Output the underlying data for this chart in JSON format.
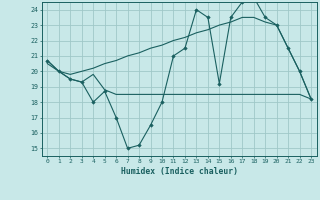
{
  "background_color": "#c8e8e8",
  "grid_color": "#a0c8c8",
  "line_color": "#1a6060",
  "xlabel": "Humidex (Indice chaleur)",
  "xlim": [
    -0.5,
    23.5
  ],
  "ylim": [
    14.5,
    24.5
  ],
  "yticks": [
    15,
    16,
    17,
    18,
    19,
    20,
    21,
    22,
    23,
    24
  ],
  "xticks": [
    0,
    1,
    2,
    3,
    4,
    5,
    6,
    7,
    8,
    9,
    10,
    11,
    12,
    13,
    14,
    15,
    16,
    17,
    18,
    19,
    20,
    21,
    22,
    23
  ],
  "line1_x": [
    0,
    1,
    2,
    3,
    4,
    5,
    6,
    7,
    8,
    9,
    10,
    11,
    12,
    13,
    14,
    15,
    16,
    17,
    18,
    19,
    20,
    21,
    22,
    23
  ],
  "line1_y": [
    20.7,
    20.0,
    19.5,
    19.3,
    18.0,
    18.7,
    17.0,
    15.0,
    15.2,
    16.5,
    18.0,
    21.0,
    21.5,
    24.0,
    23.5,
    19.2,
    23.5,
    24.5,
    24.8,
    23.5,
    23.0,
    21.5,
    20.0,
    18.2
  ],
  "line2_x": [
    0,
    2,
    3,
    4,
    5,
    6,
    7,
    8,
    9,
    10,
    11,
    12,
    13,
    14,
    15,
    16,
    17,
    18,
    19,
    20,
    21,
    22,
    23
  ],
  "line2_y": [
    20.5,
    19.5,
    19.3,
    19.8,
    18.8,
    18.5,
    18.5,
    18.5,
    18.5,
    18.5,
    18.5,
    18.5,
    18.5,
    18.5,
    18.5,
    18.5,
    18.5,
    18.5,
    18.5,
    18.5,
    18.5,
    18.5,
    18.2
  ],
  "line3_x": [
    0,
    1,
    2,
    3,
    4,
    5,
    6,
    7,
    8,
    9,
    10,
    11,
    12,
    13,
    14,
    15,
    16,
    17,
    18,
    19,
    20,
    21,
    22,
    23
  ],
  "line3_y": [
    20.7,
    20.0,
    19.8,
    20.0,
    20.2,
    20.5,
    20.7,
    21.0,
    21.2,
    21.5,
    21.7,
    22.0,
    22.2,
    22.5,
    22.7,
    23.0,
    23.2,
    23.5,
    23.5,
    23.2,
    23.0,
    21.5,
    20.0,
    18.2
  ]
}
